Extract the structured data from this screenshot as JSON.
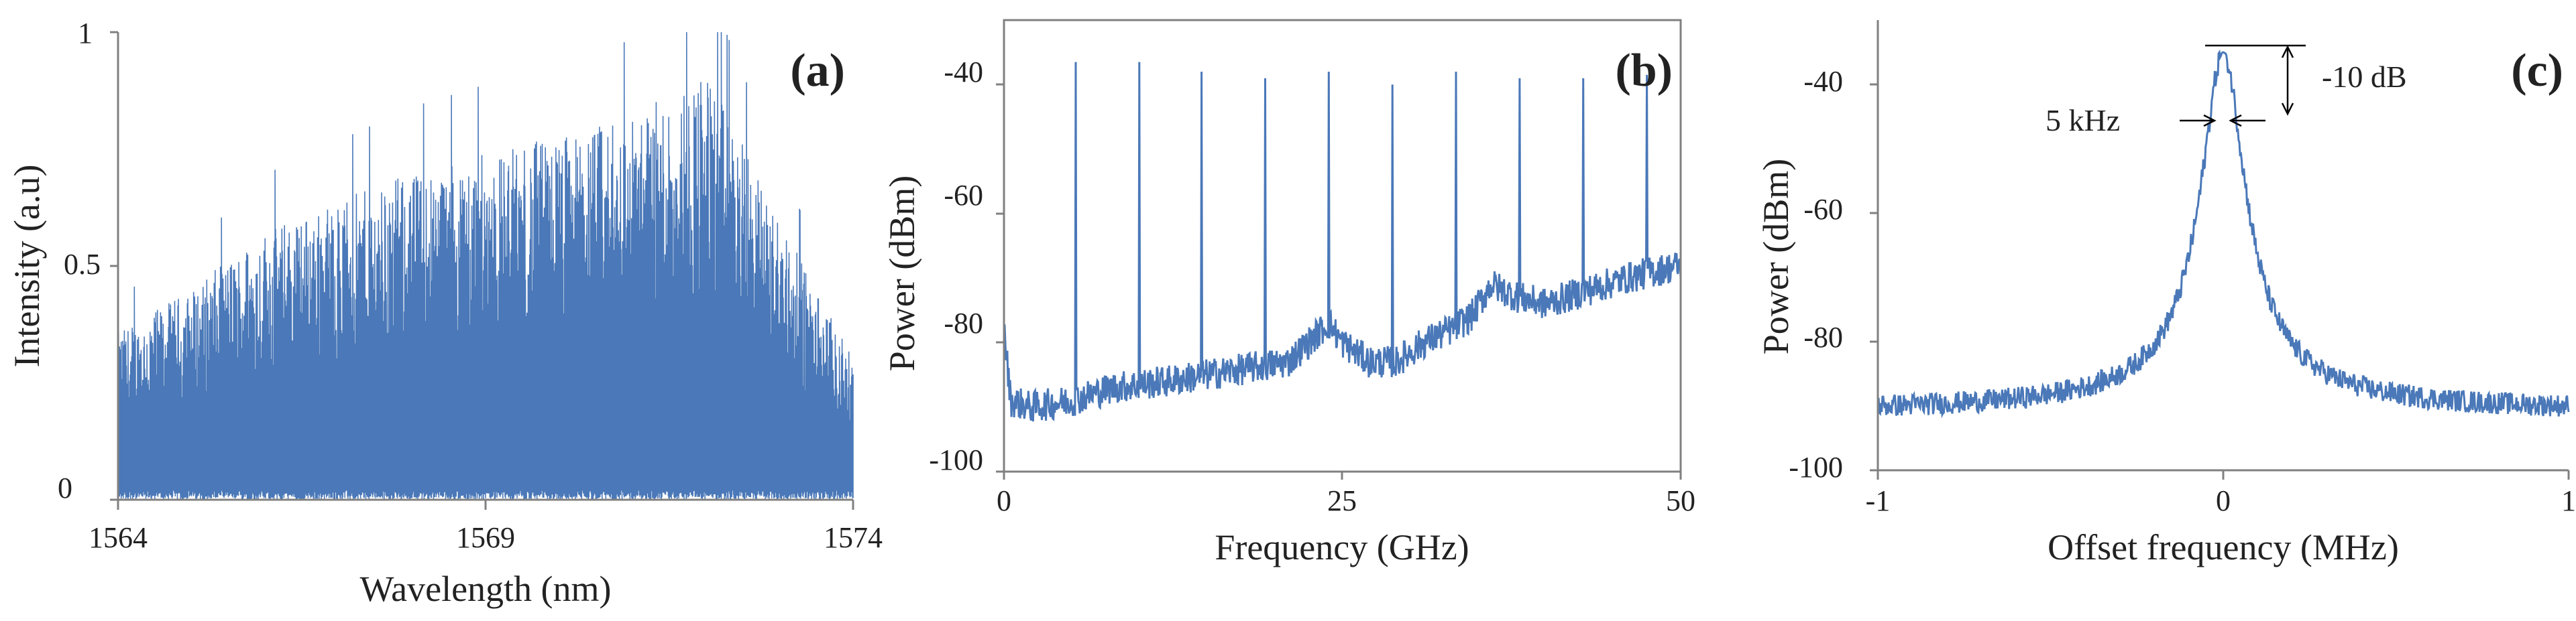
{
  "colors": {
    "line": "#4a78b8",
    "axis": "#808080",
    "text": "#222222",
    "annotation": "#000000"
  },
  "chart_data": [
    {
      "type": "line",
      "panel_label": "(a)",
      "xlabel": "Wavelength (nm)",
      "ylabel": "Intensity (a.u)",
      "xlim": [
        1564,
        1574
      ],
      "ylim": [
        0,
        1
      ],
      "x_ticks": [
        1564,
        1569,
        1574
      ],
      "x_tick_labels": [
        "1564",
        "1569",
        "1574"
      ],
      "y_ticks": [
        0,
        0.5,
        1
      ],
      "y_tick_labels": [
        "0",
        "0.5",
        "1"
      ],
      "grid": false,
      "series": [
        {
          "style": "dense-spectrum",
          "envelope_x": [
            1564,
            1565,
            1566,
            1567,
            1568,
            1569,
            1570,
            1571,
            1572,
            1573,
            1574
          ],
          "envelope_y": [
            0.36,
            0.45,
            0.58,
            0.64,
            0.7,
            0.74,
            0.78,
            0.82,
            0.92,
            0.6,
            0.3
          ],
          "floor_y": 0.02
        }
      ]
    },
    {
      "type": "line",
      "panel_label": "(b)",
      "xlabel": "Frequency (GHz)",
      "ylabel": "Power (dBm)",
      "xlim": [
        0,
        50
      ],
      "ylim": [
        -100,
        -30
      ],
      "x_ticks": [
        0,
        25,
        50
      ],
      "x_tick_labels": [
        "0",
        "25",
        "50"
      ],
      "y_ticks": [
        -100,
        -80,
        -60,
        -40
      ],
      "y_tick_labels": [
        "-100",
        "-80",
        "-60",
        "-40"
      ],
      "grid": false,
      "series": [
        {
          "style": "noise-floor",
          "floor_x": [
            0,
            0.5,
            2,
            5,
            8,
            12,
            15,
            18,
            21,
            23,
            24,
            25,
            27,
            29,
            31,
            33,
            34.5,
            36,
            38,
            40,
            43,
            46,
            50
          ],
          "floor_y": [
            -78,
            -89,
            -90,
            -89,
            -87,
            -86,
            -85,
            -84,
            -83,
            -79,
            -77,
            -80,
            -83,
            -83,
            -80,
            -78,
            -76,
            -71,
            -73,
            -74,
            -72,
            -70,
            -68
          ],
          "peaks_x": [
            5.3,
            10.0,
            14.6,
            19.3,
            24.0,
            28.7,
            33.4,
            38.1,
            42.8,
            47.5
          ],
          "peaks_y": [
            -36.5,
            -36.5,
            -38.0,
            -39.0,
            -38.0,
            -40.0,
            -38.0,
            -39.0,
            -39.0,
            -38.5
          ]
        }
      ]
    },
    {
      "type": "line",
      "panel_label": "(c)",
      "xlabel": "Offset frequency (MHz)",
      "ylabel": "Power (dBm)",
      "xlim": [
        -1,
        1
      ],
      "ylim": [
        -100,
        -30
      ],
      "x_ticks": [
        -1,
        0,
        1
      ],
      "x_tick_labels": [
        "-1",
        "0",
        "1"
      ],
      "y_ticks": [
        -100,
        -80,
        -60,
        -40
      ],
      "y_tick_labels": [
        "-100",
        "-80",
        "-60",
        "-40"
      ],
      "grid": false,
      "series": [
        {
          "style": "lorentzian",
          "center": 0,
          "peak": -35,
          "floor": -91,
          "width": 0.07,
          "exponent": 0.75
        }
      ],
      "annotations": [
        {
          "text": "5 kHz",
          "x": -0.17,
          "y": -42
        },
        {
          "text": "-10 dB",
          "x": 0.26,
          "y": -38
        }
      ]
    }
  ]
}
